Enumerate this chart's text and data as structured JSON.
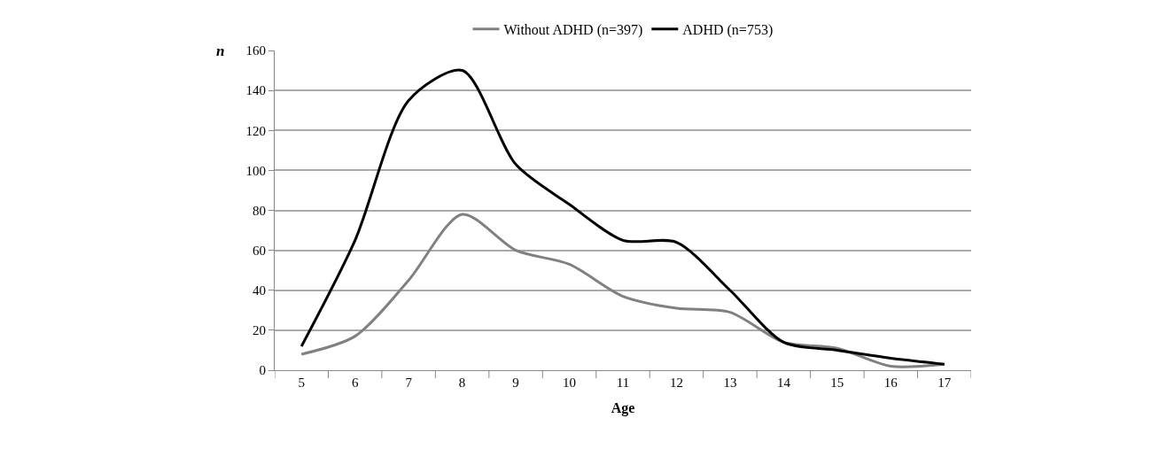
{
  "chart_data": {
    "type": "line",
    "xlabel": "Age",
    "ylabel": "n",
    "categories": [
      "5",
      "6",
      "7",
      "8",
      "9",
      "10",
      "11",
      "12",
      "13",
      "14",
      "15",
      "16",
      "17"
    ],
    "series": [
      {
        "name": "Without ADHD (n=397)",
        "color": "#808080",
        "values": [
          8,
          17,
          45,
          78,
          60,
          53,
          37,
          31,
          29,
          14,
          11,
          2,
          3
        ]
      },
      {
        "name": "ADHD (n=753)",
        "color": "#000000",
        "values": [
          12,
          65,
          135,
          150,
          103,
          83,
          65,
          64,
          40,
          14,
          10,
          6,
          3
        ]
      }
    ],
    "ylim": [
      0,
      160
    ],
    "yticks": [
      0,
      20,
      40,
      60,
      80,
      100,
      120,
      140,
      160
    ],
    "grid": "y",
    "legend": "top",
    "marker": "none",
    "line_style": "solid"
  }
}
